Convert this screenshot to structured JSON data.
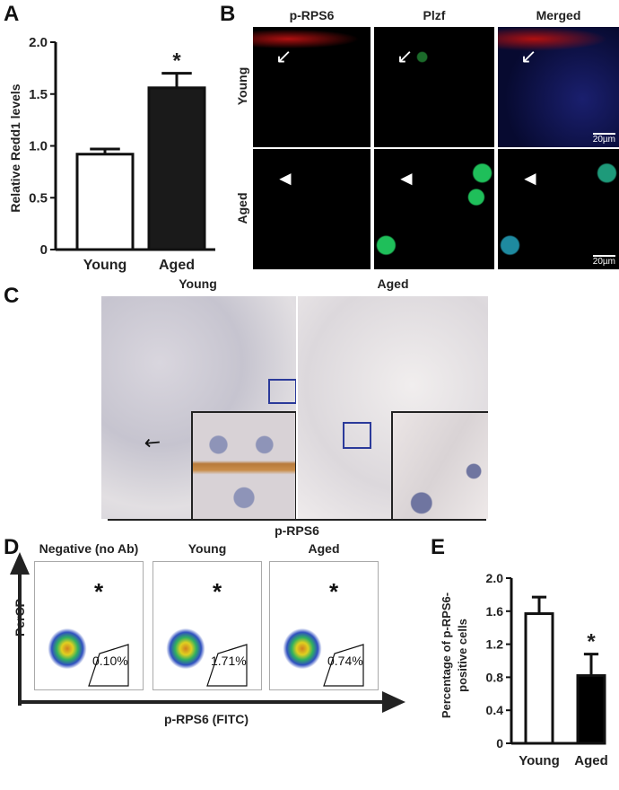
{
  "panels": {
    "a": "A",
    "b": "B",
    "c": "C",
    "d": "D",
    "e": "E"
  },
  "chart_data": [
    {
      "type": "bar",
      "panel": "A",
      "categories": [
        "Young",
        "Aged"
      ],
      "values": [
        0.92,
        1.56
      ],
      "errors": [
        0.05,
        0.14
      ],
      "significance": [
        "",
        "*"
      ],
      "bar_colors": [
        "#ffffff",
        "#1a1a1a"
      ],
      "ylabel": "Relative Redd1 levels",
      "ylim": [
        0,
        2.0
      ],
      "yticks": [
        "0",
        "0.5",
        "1.0",
        "1.5",
        "2.0"
      ]
    },
    {
      "type": "bar",
      "panel": "E",
      "categories": [
        "Young",
        "Aged"
      ],
      "values": [
        1.57,
        0.82
      ],
      "errors": [
        0.2,
        0.26
      ],
      "significance": [
        "",
        "*"
      ],
      "bar_colors": [
        "#ffffff",
        "#000000"
      ],
      "ylabel_line1": "Percentage of p-RPS6-",
      "ylabel_line2": "positive cells",
      "ylim": [
        0,
        2.0
      ],
      "yticks": [
        "0",
        "0.4",
        "0.8",
        "1.2",
        "1.6",
        "2.0"
      ]
    }
  ],
  "panel_b": {
    "columns": [
      "p-RPS6",
      "Plzf",
      "Merged"
    ],
    "rows": [
      "Young",
      "Aged"
    ],
    "scalebar": "20µm"
  },
  "panel_c": {
    "columns": [
      "Young",
      "Aged"
    ],
    "caption": "p-RPS6",
    "inset_box_color": "#2b3a9a"
  },
  "panel_d": {
    "columns": [
      "Negative (no Ab)",
      "Young",
      "Aged"
    ],
    "percentages": [
      "0.10%",
      "1.71%",
      "0.74%"
    ],
    "star": "*",
    "y_axis": "PerCP",
    "x_axis": "p-RPS6 (FITC)"
  }
}
